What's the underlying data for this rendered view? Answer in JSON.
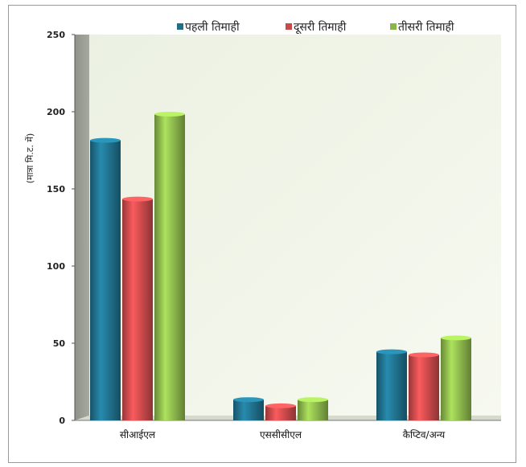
{
  "chart_data": {
    "type": "bar",
    "title": "",
    "xlabel": "",
    "ylabel": "(मात्रा मि.ट. में)",
    "ylim": [
      0,
      250
    ],
    "yticks": [
      "0",
      "50",
      "100",
      "150",
      "200",
      "250"
    ],
    "categories": [
      "सीआईएल",
      "एससीसीएल",
      "कैप्टिव/अन्य"
    ],
    "series": [
      {
        "name": "पहली  तिमाही",
        "values": [
          183,
          15,
          46
        ],
        "color": "#1f6f8b"
      },
      {
        "name": "दूसरी  तिमाही",
        "values": [
          145,
          11,
          44
        ],
        "color": "#c9494a"
      },
      {
        "name": "तीसरी  तिमाही",
        "values": [
          200,
          15,
          55
        ],
        "color": "#8ab54a"
      }
    ],
    "grid": false,
    "legend_position": "top"
  }
}
